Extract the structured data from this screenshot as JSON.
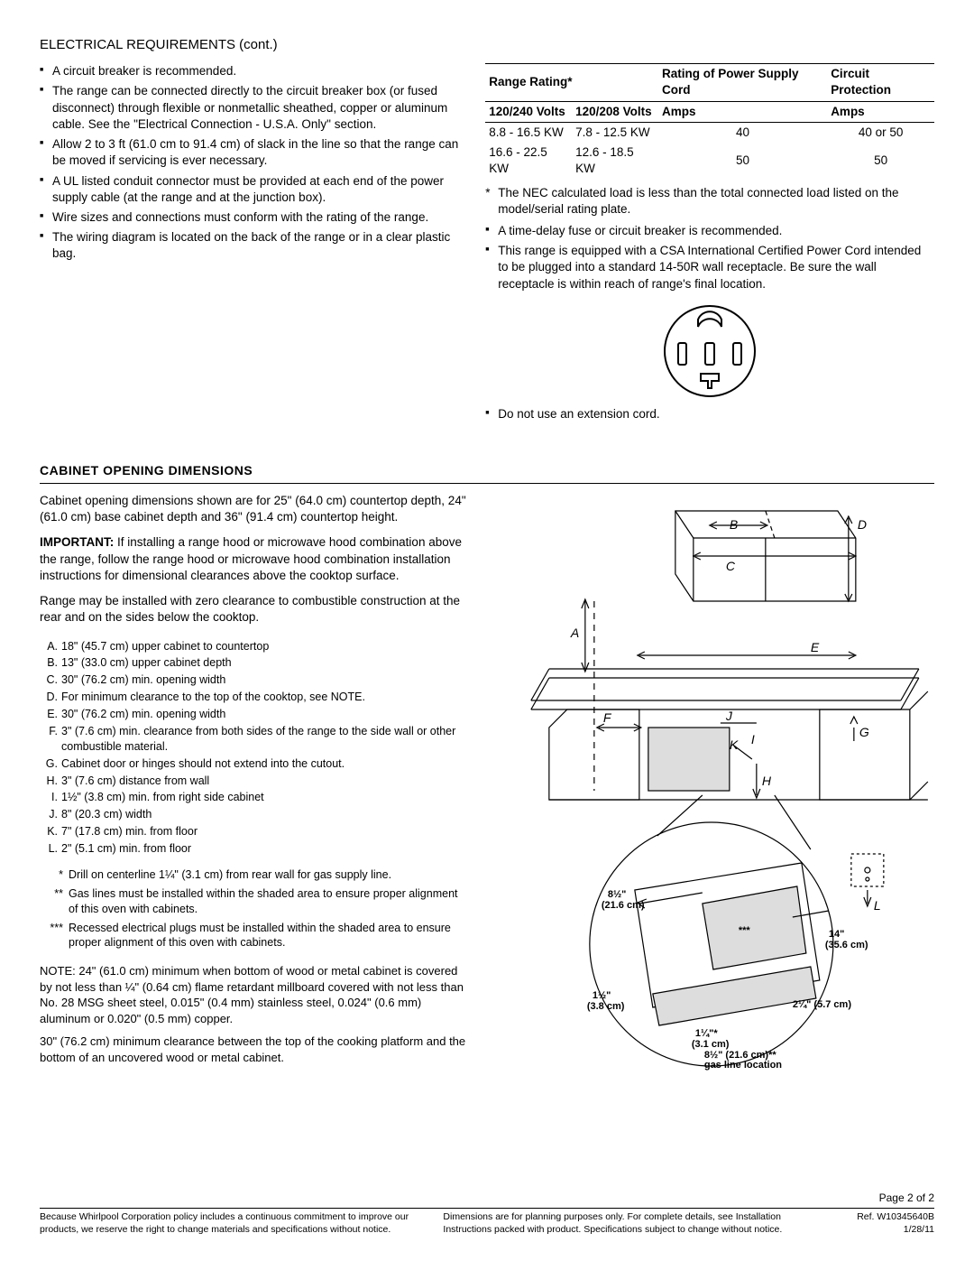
{
  "header": {
    "title": "ELECTRICAL REQUIREMENTS (cont.)"
  },
  "left_bullets": [
    "A circuit breaker is recommended.",
    "The range can be connected directly to the circuit breaker box (or fused disconnect) through flexible or nonmetallic sheathed, copper or aluminum cable. See the \"Electrical Connection - U.S.A. Only\" section.",
    "Allow 2 to 3 ft (61.0 cm to 91.4 cm) of slack in the line so that the range can be moved if servicing is ever necessary.",
    "A UL listed conduit connector must be provided at each end of the power supply cable (at the range and at the junction box).",
    "Wire sizes and connections must conform with the rating of the range.",
    "The wiring diagram is located on the back of the range or in a clear plastic bag."
  ],
  "rating_table": {
    "headers": [
      "Range Rating*",
      "",
      "Rating of Power Supply Cord",
      "Circuit Protection"
    ],
    "subheaders": [
      "120/240 Volts",
      "120/208 Volts",
      "Amps",
      "Amps"
    ],
    "rows": [
      [
        "8.8 - 16.5 KW",
        "7.8 - 12.5 KW",
        "40",
        "40 or 50"
      ],
      [
        "16.6 - 22.5 KW",
        "12.6 - 18.5 KW",
        "50",
        "50"
      ]
    ]
  },
  "right_bullets": [
    "The NEC calculated load is less than the total connected load listed on the model/serial rating plate.",
    "A time-delay fuse or circuit breaker is recommended.",
    "This range is equipped with a CSA International Certified Power Cord intended to be plugged into a standard 14-50R wall receptacle. Be sure the wall receptacle is within reach of range's final location."
  ],
  "right_bullet_last": "Do not use an extension cord.",
  "cabinet": {
    "title": "CABINET OPENING DIMENSIONS",
    "p1": "Cabinet opening dimensions shown are for 25\" (64.0 cm) countertop depth, 24\" (61.0 cm) base cabinet depth and 36\" (91.4 cm) countertop height.",
    "p2_strong": "IMPORTANT:",
    "p2": " If installing a range hood or microwave hood combination above the range, follow the range hood or microwave hood combination installation instructions for dimensional clearances above the cooktop surface.",
    "p3": "Range may be installed with zero clearance to combustible construction at the rear and on the sides below the cooktop.",
    "dims": [
      {
        "k": "A.",
        "v": "18\" (45.7 cm) upper cabinet to countertop"
      },
      {
        "k": "B.",
        "v": "13\" (33.0 cm) upper cabinet depth"
      },
      {
        "k": "C.",
        "v": "30\" (76.2 cm) min. opening width"
      },
      {
        "k": "D.",
        "v": "For minimum clearance to the top of the cooktop, see NOTE."
      },
      {
        "k": "E.",
        "v": "30\" (76.2 cm) min. opening width"
      },
      {
        "k": "F.",
        "v": "3\" (7.6 cm) min. clearance from both sides of the range to the side wall or other combustible material."
      },
      {
        "k": "G.",
        "v": "Cabinet door or hinges should not extend into the cutout."
      },
      {
        "k": "H.",
        "v": "3\" (7.6 cm) distance from wall"
      },
      {
        "k": "I.",
        "v": "1½\" (3.8 cm) min. from right side cabinet"
      },
      {
        "k": "J.",
        "v": "8\" (20.3 cm) width"
      },
      {
        "k": "K.",
        "v": "7\" (17.8 cm) min. from floor"
      },
      {
        "k": "L.",
        "v": "2\" (5.1 cm) min. from floor"
      }
    ],
    "stars": [
      {
        "k": "*",
        "v": "Drill on centerline 1¼\" (3.1 cm) from rear wall for gas supply line."
      },
      {
        "k": "**",
        "v": "Gas lines must be installed within the shaded area to ensure proper alignment of this oven with cabinets."
      },
      {
        "k": "***",
        "v": "Recessed electrical plugs must be installed within the shaded area to ensure proper alignment of this oven with cabinets."
      }
    ],
    "note": "NOTE: 24\" (61.0 cm) minimum when bottom of wood or metal cabinet is covered by not less than ¼\" (0.64 cm) flame retardant millboard covered with not less than No. 28 MSG sheet steel, 0.015\" (0.4 mm) stainless steel, 0.024\" (0.6 mm) aluminum or 0.020\" (0.5 mm) copper.",
    "note2": "30\" (76.2 cm) minimum clearance between the top of the cooking platform and the bottom of an uncovered wood or metal cabinet."
  },
  "diagram_labels": {
    "A": "A",
    "B": "B",
    "C": "C",
    "D": "D",
    "E": "E",
    "F": "F",
    "G": "G",
    "H": "H",
    "I": "I",
    "J": "J",
    "K": "K",
    "L": "L",
    "d1": "8½\"",
    "d1b": "(21.6 cm)",
    "d2": "14\"",
    "d2b": "(35.6 cm)",
    "d3": "1½\"",
    "d3b": "(3.8 cm)",
    "d4": "2¼\" (5.7 cm)",
    "d5": "1¼\"*",
    "d5b": "(3.1 cm)",
    "d6": "8½\" (21.6 cm)**",
    "d6b": "gas line location",
    "d7": "***"
  },
  "footer": {
    "page": "Page 2 of 2",
    "left": "Because Whirlpool Corporation policy includes a continuous commitment to improve our products, we reserve the right to change materials and specifications without notice.",
    "mid": "Dimensions are for planning purposes only. For complete details, see Installation Instructions packed with product. Specifications subject to change without notice.",
    "ref": "Ref. W10345640B",
    "date": "1/28/11"
  }
}
